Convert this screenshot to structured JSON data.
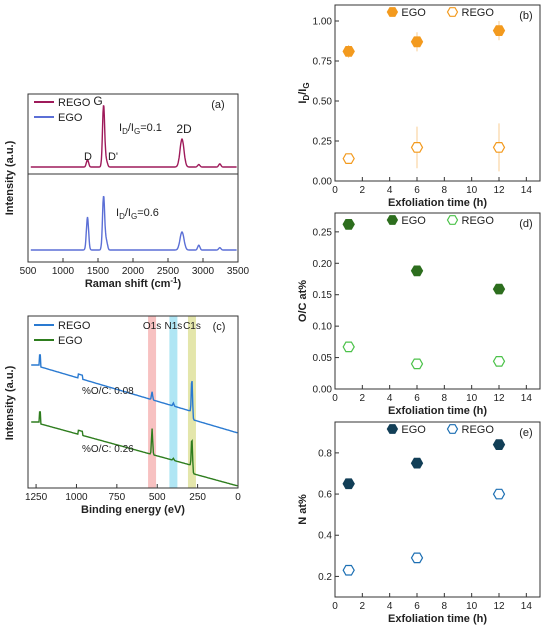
{
  "chart_data": [
    {
      "id": "a",
      "type": "line",
      "panel_label": "(a)",
      "xlabel": "Raman shift (cm",
      "xlabel_sup": "-1",
      "xlabel_end": ")",
      "ylabel": "Intensity (a.u.)",
      "xlim": [
        500,
        3500
      ],
      "xticks": [
        "500",
        "1000",
        "1500",
        "2000",
        "2500",
        "3000",
        "3500"
      ],
      "legend": [
        "REGO",
        "EGO"
      ],
      "series": [
        {
          "name": "REGO",
          "color": "#9e1a5a",
          "peaks": [
            {
              "x": 1350,
              "h": 0.12
            },
            {
              "x": 1580,
              "h": 1.0
            },
            {
              "x": 1620,
              "h": 0.1
            },
            {
              "x": 2700,
              "h": 0.45
            },
            {
              "x": 2940,
              "h": 0.04
            },
            {
              "x": 3240,
              "h": 0.05
            }
          ]
        },
        {
          "name": "EGO",
          "color": "#5b6fd6",
          "peaks": [
            {
              "x": 1350,
              "h": 0.55
            },
            {
              "x": 1580,
              "h": 0.9
            },
            {
              "x": 1620,
              "h": 0.15
            },
            {
              "x": 2700,
              "h": 0.3
            },
            {
              "x": 2940,
              "h": 0.08
            },
            {
              "x": 3240,
              "h": 0.04
            }
          ]
        }
      ],
      "annotations": {
        "G": "G",
        "D": "D",
        "Dprime": "D'",
        "twoD": "2D",
        "ratio_rego": "I",
        "ratio_rego_val": "=0.1",
        "ratio_ego": "I",
        "ratio_ego_val": "=0.6",
        "sub_d": "D",
        "sub_g": "G",
        "slash": "/I"
      }
    },
    {
      "id": "c",
      "type": "line",
      "panel_label": "(c)",
      "xlabel": "Binding energy (eV)",
      "ylabel": "Intensity (a.u.)",
      "xlim": [
        1300,
        0
      ],
      "xticks": [
        "1250",
        "1000",
        "750",
        "500",
        "250",
        "0"
      ],
      "legend": [
        "REGO",
        "EGO"
      ],
      "bands": [
        {
          "label": "O1s",
          "x": 532,
          "color": "#f4a6a6"
        },
        {
          "label": "N1s",
          "x": 400,
          "color": "#8fdcef"
        },
        {
          "label": "C1s",
          "x": 285,
          "color": "#d8dc88"
        }
      ],
      "series": [
        {
          "name": "REGO",
          "color": "#2a7ad1",
          "oc_label": "%O/C: 0.08"
        },
        {
          "name": "EGO",
          "color": "#2e7d1e",
          "oc_label": "%O/C: 0.26"
        }
      ]
    },
    {
      "id": "b",
      "type": "scatter",
      "panel_label": "(b)",
      "xlabel": "Exfoliation time (h)",
      "ylabel": "I",
      "ylabel_sub1": "D",
      "ylabel_mid": "/I",
      "ylabel_sub2": "G",
      "xlim": [
        0,
        15
      ],
      "ylim": [
        0,
        1.1
      ],
      "xticks": [
        0,
        2,
        4,
        6,
        8,
        10,
        12,
        14
      ],
      "yticks": [
        "0.00",
        "0.25",
        "0.50",
        "0.75",
        "1.00"
      ],
      "ytick_values": [
        0,
        0.25,
        0.5,
        0.75,
        1.0
      ],
      "series": [
        {
          "name": "EGO",
          "filled": true,
          "color": "#f39a1e",
          "x": [
            1,
            6,
            12
          ],
          "y": [
            0.81,
            0.87,
            0.94
          ],
          "err": [
            0.04,
            0.06,
            0.06
          ]
        },
        {
          "name": "REGO",
          "filled": false,
          "color": "#f39a1e",
          "x": [
            1,
            6,
            12
          ],
          "y": [
            0.14,
            0.21,
            0.21
          ],
          "err": [
            0.02,
            0.13,
            0.15
          ]
        }
      ]
    },
    {
      "id": "d",
      "type": "scatter",
      "panel_label": "(d)",
      "xlabel": "Exfoliation time (h)",
      "ylabel": "O/C at%",
      "xlim": [
        0,
        15
      ],
      "ylim": [
        0,
        0.28
      ],
      "xticks": [
        0,
        2,
        4,
        6,
        8,
        10,
        12,
        14
      ],
      "yticks": [
        "0.00",
        "0.05",
        "0.10",
        "0.15",
        "0.20",
        "0.25"
      ],
      "ytick_values": [
        0,
        0.05,
        0.1,
        0.15,
        0.2,
        0.25
      ],
      "series": [
        {
          "name": "EGO",
          "filled": true,
          "color": "#2d6e1e",
          "x": [
            1,
            6,
            12
          ],
          "y": [
            0.262,
            0.188,
            0.159
          ]
        },
        {
          "name": "REGO",
          "filled": false,
          "color": "#4cc24a",
          "x": [
            1,
            6,
            12
          ],
          "y": [
            0.067,
            0.04,
            0.044
          ]
        }
      ]
    },
    {
      "id": "e",
      "type": "scatter",
      "panel_label": "(e)",
      "xlabel": "Exfoliation time (h)",
      "ylabel": "N at%",
      "xlim": [
        0,
        15
      ],
      "ylim": [
        0.1,
        0.95
      ],
      "xticks": [
        0,
        2,
        4,
        6,
        8,
        10,
        12,
        14
      ],
      "yticks": [
        "0.2",
        "0.4",
        "0.6",
        "0.8"
      ],
      "ytick_values": [
        0.2,
        0.4,
        0.6,
        0.8
      ],
      "series": [
        {
          "name": "EGO",
          "filled": true,
          "color": "#123f57",
          "x": [
            1,
            6,
            12
          ],
          "y": [
            0.65,
            0.75,
            0.84
          ]
        },
        {
          "name": "REGO",
          "filled": false,
          "color": "#1c6fb3",
          "x": [
            1,
            6,
            12
          ],
          "y": [
            0.23,
            0.29,
            0.6
          ]
        }
      ]
    }
  ]
}
